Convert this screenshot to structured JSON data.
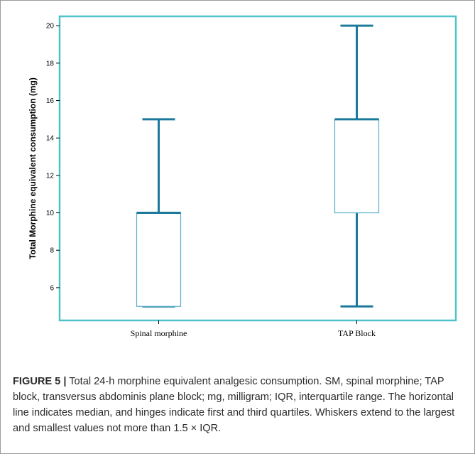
{
  "chart_data": {
    "type": "boxplot",
    "ylabel": "Total Morphine equivalent consumption (mg)",
    "xlabel": "",
    "ylim": [
      4.25,
      20.5
    ],
    "yticks": [
      6,
      8,
      10,
      12,
      14,
      16,
      18,
      20
    ],
    "grid": false,
    "categories": [
      "Spinal morphine",
      "TAP Block"
    ],
    "boxes": [
      {
        "category": "Spinal morphine",
        "min": 5,
        "q1": 5,
        "median": 10,
        "q3": 10,
        "max": 15
      },
      {
        "category": "TAP Block",
        "min": 5,
        "q1": 10,
        "median": 15,
        "q3": 15,
        "max": 20
      }
    ],
    "colors": {
      "plot_border": "#4fc3c8",
      "whisker": "#1b7a9c",
      "box": "#5aaec8"
    }
  },
  "caption": {
    "label": "FIGURE 5 |",
    "text": " Total 24-h morphine equivalent analgesic consumption. SM, spinal morphine; TAP block, transversus abdominis plane block; mg, milligram; IQR, interquartile range. The horizontal line indicates median, and hinges indicate first and third quartiles. Whiskers extend to the largest and smallest values not more than 1.5 × IQR."
  }
}
